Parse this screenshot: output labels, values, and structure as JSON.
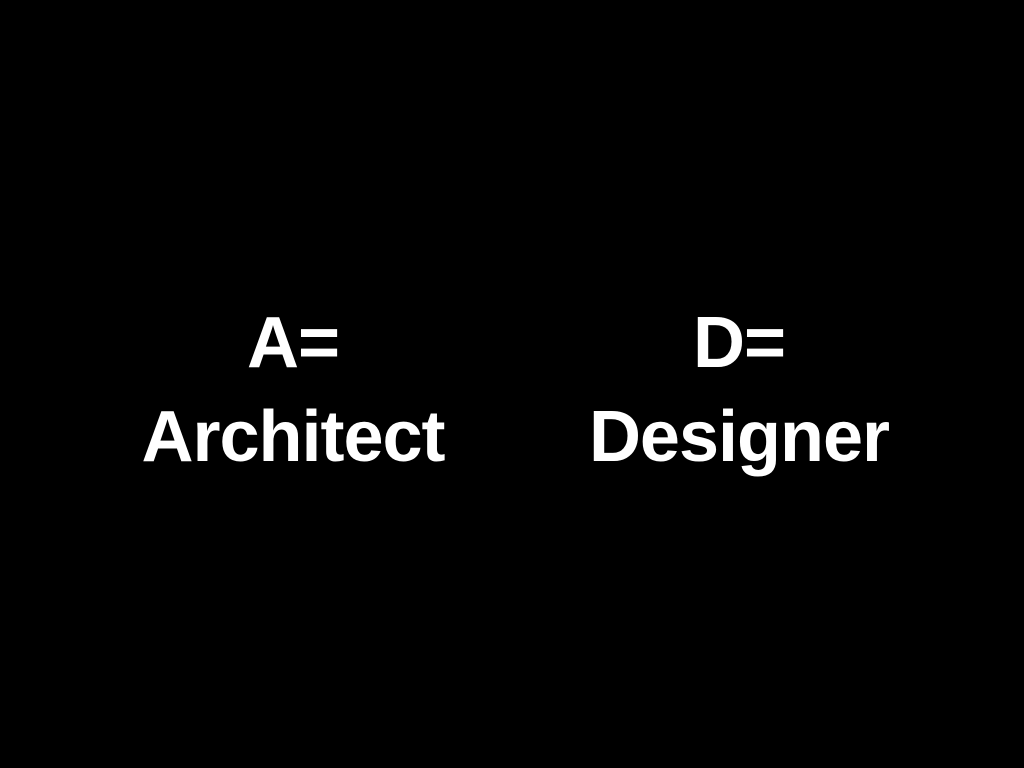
{
  "slide": {
    "background_color": "#000000",
    "text_color": "#ffffff",
    "left_block": {
      "key": "A=",
      "term": "Architect"
    },
    "right_block": {
      "key": "D=",
      "term": "Designer"
    }
  }
}
